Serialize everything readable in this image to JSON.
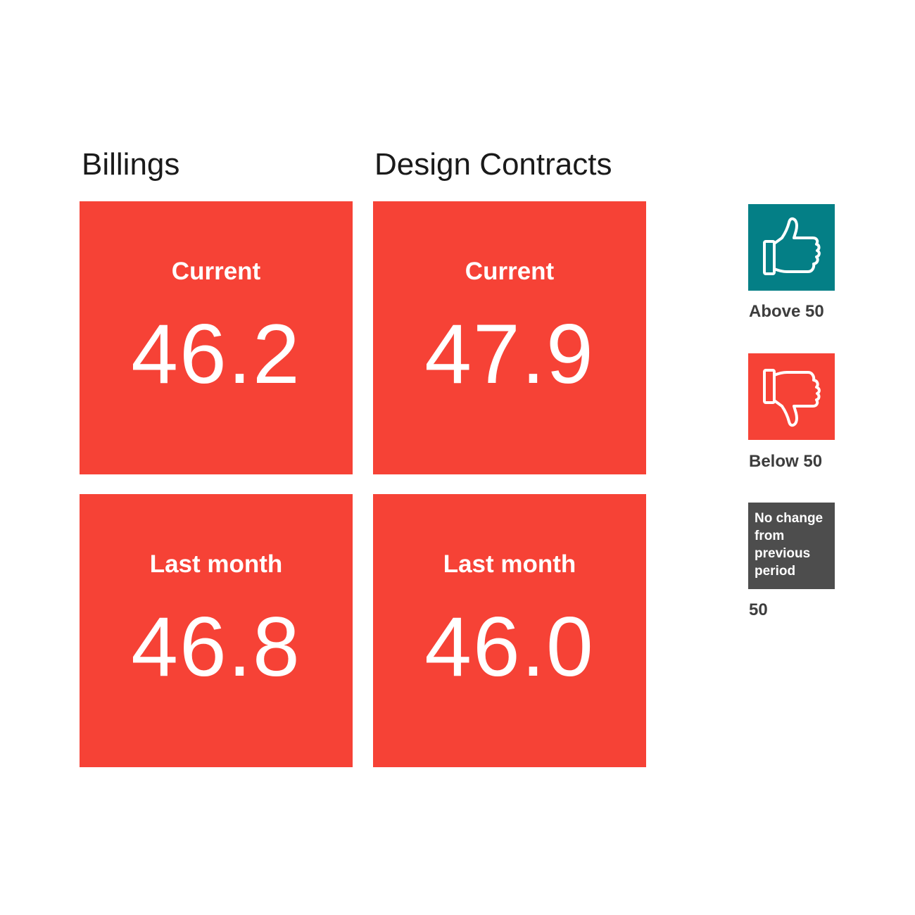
{
  "columns": [
    {
      "title": "Billings",
      "tiles": [
        {
          "label": "Current",
          "value": "46.2"
        },
        {
          "label": "Last month",
          "value": "46.8"
        }
      ]
    },
    {
      "title": "Design Contracts",
      "tiles": [
        {
          "label": "Current",
          "value": "47.9"
        },
        {
          "label": "Last month",
          "value": "46.0"
        }
      ]
    }
  ],
  "legend": {
    "above": {
      "icon": "thumbs-up-icon",
      "label": "Above 50",
      "color": "#047f86"
    },
    "below": {
      "icon": "thumbs-down-icon",
      "label": "Below 50",
      "color": "#f64236"
    },
    "no_change": {
      "text": "No change from previous period",
      "label": "50",
      "color": "#4d4d4d"
    }
  },
  "colors": {
    "tile": "#f64236",
    "tile_text": "#ffffff",
    "title_text": "#1a1a1a",
    "legend_text": "#3d3d3d"
  }
}
